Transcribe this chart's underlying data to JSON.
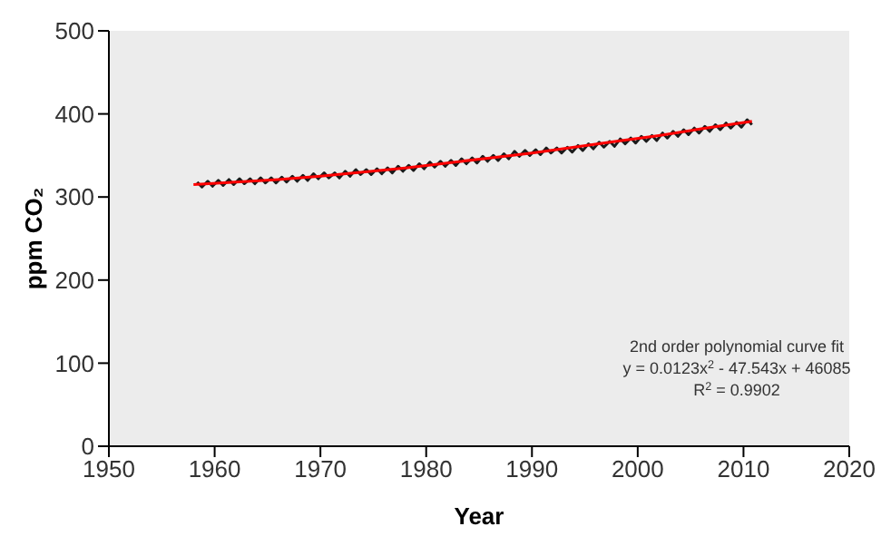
{
  "chart_data": {
    "type": "line",
    "xlabel": "Year",
    "ylabel": "ppm CO₂",
    "xlim": [
      1950,
      2020
    ],
    "xticks": [
      1950,
      1960,
      1970,
      1980,
      1990,
      2000,
      2010,
      2020
    ],
    "ylim": [
      0,
      500
    ],
    "yticks": [
      0,
      100,
      200,
      300,
      400,
      500
    ],
    "marker": "none",
    "series": [
      {
        "color": "#1a1a1a",
        "x": [
          1958.35,
          1958.8,
          1959.35,
          1959.8,
          1960.35,
          1960.8,
          1961.35,
          1961.8,
          1962.35,
          1962.8,
          1963.35,
          1963.8,
          1964.35,
          1964.8,
          1965.35,
          1965.8,
          1966.35,
          1966.8,
          1967.35,
          1967.8,
          1968.35,
          1968.8,
          1969.35,
          1969.8,
          1970.35,
          1970.8,
          1971.35,
          1971.8,
          1972.35,
          1972.8,
          1973.35,
          1973.8,
          1974.35,
          1974.8,
          1975.35,
          1975.8,
          1976.35,
          1976.8,
          1977.35,
          1977.8,
          1978.35,
          1978.8,
          1979.35,
          1979.8,
          1980.35,
          1980.8,
          1981.35,
          1981.8,
          1982.35,
          1982.8,
          1983.35,
          1983.8,
          1984.35,
          1984.8,
          1985.35,
          1985.8,
          1986.35,
          1986.8,
          1987.35,
          1987.8,
          1988.35,
          1988.8,
          1989.35,
          1989.8,
          1990.35,
          1990.8,
          1991.35,
          1991.8,
          1992.35,
          1992.8,
          1993.35,
          1993.8,
          1994.35,
          1994.8,
          1995.35,
          1995.8,
          1996.35,
          1996.8,
          1997.35,
          1997.8,
          1998.35,
          1998.8,
          1999.35,
          1999.8,
          2000.35,
          2000.8,
          2001.35,
          2001.8,
          2002.35,
          2002.8,
          2003.35,
          2003.8,
          2004.35,
          2004.8,
          2005.35,
          2005.8,
          2006.35,
          2006.8,
          2007.35,
          2007.8,
          2008.35,
          2008.8,
          2009.35,
          2009.8,
          2010.35,
          2010.8
        ],
        "values": [
          318,
          312,
          319,
          313,
          320,
          314,
          321,
          315,
          322,
          316,
          322,
          316,
          323,
          317,
          323,
          317,
          324,
          318,
          325,
          319,
          326,
          320,
          328,
          322,
          329,
          323,
          329,
          323,
          331,
          325,
          333,
          327,
          333,
          327,
          334,
          328,
          335,
          329,
          337,
          331,
          338,
          332,
          340,
          334,
          342,
          336,
          343,
          337,
          344,
          338,
          346,
          340,
          347,
          341,
          349,
          343,
          350,
          344,
          352,
          346,
          355,
          349,
          356,
          350,
          357,
          351,
          359,
          353,
          359,
          353,
          360,
          354,
          362,
          356,
          364,
          358,
          366,
          360,
          367,
          361,
          370,
          364,
          371,
          365,
          373,
          367,
          374,
          368,
          377,
          371,
          379,
          373,
          381,
          375,
          383,
          377,
          385,
          379,
          387,
          381,
          389,
          383,
          390,
          384,
          393,
          387
        ]
      },
      {
        "color": "#ff0000",
        "x": [
          1958,
          1962,
          1966,
          1970,
          1974,
          1978,
          1982,
          1986,
          1990,
          1994,
          1998,
          2002,
          2006,
          2010.8
        ],
        "values": [
          315,
          318,
          321,
          325,
          330,
          335,
          341,
          347,
          353,
          360,
          367,
          374,
          382,
          391
        ]
      }
    ],
    "annotations": [
      "2nd order polynomial curve fit",
      "y = 0.0123x$^{2}$ - 47.543x + 46085",
      "R$^{2}$ = 0.9902"
    ]
  }
}
